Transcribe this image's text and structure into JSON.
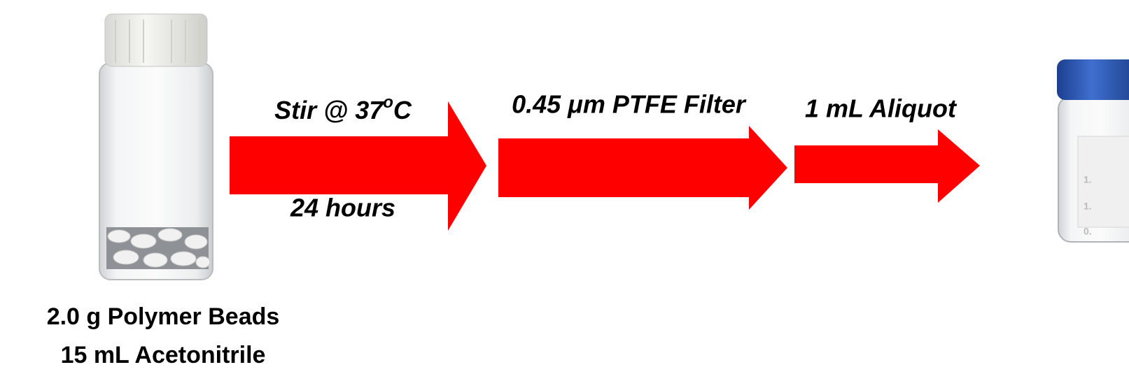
{
  "steps": [
    {
      "label_parts": [
        "Stir @ 37",
        "o",
        "C"
      ],
      "sublabel": "24 hours"
    },
    {
      "label": "0.45 μm PTFE Filter"
    },
    {
      "label": "1 mL Aliquot"
    }
  ],
  "start": {
    "caption_lines": [
      "2.0 g Polymer Beads",
      "15 mL Acetonitrile"
    ]
  },
  "end_vial": {
    "graduations": [
      "1.",
      "1.",
      "0."
    ]
  }
}
